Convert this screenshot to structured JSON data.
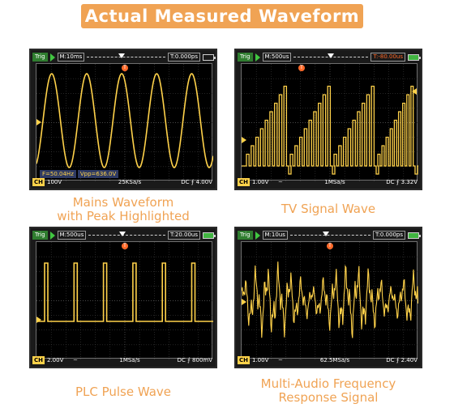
{
  "title": "Actual Measured Waveform",
  "colors": {
    "accent": "#f0a354",
    "trace": "#ffd24a",
    "trig_tag": "#2f7d2f",
    "screen_bg": "#000000",
    "grid": "#4a4a4a"
  },
  "panels": [
    {
      "trig_label": "Trig",
      "timebase": "M:10ms",
      "trigger_offset": "T:0.000ps",
      "trigger_marker": "T",
      "channel": "CH",
      "volts_div": "100V",
      "coupling": "",
      "sample_rate": "25KSa/s",
      "trigger_setting": "DC ⨍ 4.00V",
      "measurements": [
        "F=50.04Hz",
        "Vpp=636.0V"
      ],
      "waveform": "sine",
      "caption_lines": [
        "Mains Waveform",
        "with Peak Highlighted"
      ],
      "battery_icon": "battery-empty-icon"
    },
    {
      "trig_label": "Trig",
      "timebase": "M:500us",
      "trigger_offset": "T:-80.00us",
      "trigger_marker": "T",
      "channel": "CH",
      "volts_div": "1.00V",
      "coupling": "~",
      "sample_rate": "1MSa/s",
      "trigger_setting": "DC ⨍ 3.32V",
      "measurements": [],
      "waveform": "tv-staircase",
      "caption_lines": [
        "TV Signal Wave"
      ],
      "battery_icon": "battery-charging-icon"
    },
    {
      "trig_label": "Trig",
      "timebase": "M:500us",
      "trigger_offset": "T:20.00us",
      "trigger_marker": "T",
      "channel": "CH",
      "volts_div": "2.00V",
      "coupling": "~",
      "sample_rate": "1MSa/s",
      "trigger_setting": "DC ⨍ 800mV",
      "measurements": [],
      "waveform": "pulse",
      "caption_lines": [
        "PLC Pulse Wave"
      ],
      "battery_icon": "battery-charging-icon"
    },
    {
      "trig_label": "Trig",
      "timebase": "M:10us",
      "trigger_offset": "T:0.000ps",
      "trigger_marker": "T",
      "channel": "CH",
      "volts_div": "1.00V",
      "coupling": "~",
      "sample_rate": "62.5MSa/s",
      "trigger_setting": "DC ⨍ 2.40V",
      "measurements": [],
      "waveform": "audio",
      "caption_lines": [
        "Multi-Audio Frequency",
        "Response Signal"
      ],
      "battery_icon": "battery-charging-icon"
    }
  ]
}
